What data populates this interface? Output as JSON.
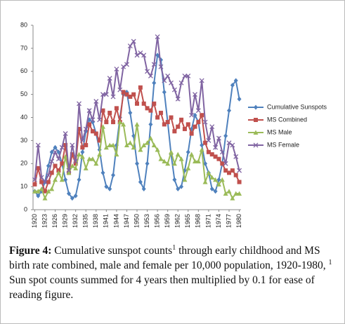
{
  "chart_data": {
    "type": "line",
    "x": [
      1920,
      1921,
      1922,
      1923,
      1924,
      1925,
      1926,
      1927,
      1928,
      1929,
      1930,
      1931,
      1932,
      1933,
      1934,
      1935,
      1936,
      1937,
      1938,
      1939,
      1940,
      1941,
      1942,
      1943,
      1944,
      1945,
      1946,
      1947,
      1948,
      1949,
      1950,
      1951,
      1952,
      1953,
      1954,
      1955,
      1956,
      1957,
      1958,
      1959,
      1960,
      1961,
      1962,
      1963,
      1964,
      1965,
      1966,
      1967,
      1968,
      1969,
      1970,
      1971,
      1972,
      1973,
      1974,
      1975,
      1976,
      1977,
      1978,
      1979,
      1980
    ],
    "xlim": [
      1919.5,
      1980.5
    ],
    "xticks": [
      1920,
      1923,
      1926,
      1929,
      1932,
      1935,
      1938,
      1941,
      1944,
      1947,
      1950,
      1953,
      1956,
      1959,
      1962,
      1965,
      1968,
      1971,
      1974,
      1977,
      1980
    ],
    "ylim": [
      0,
      80
    ],
    "yticks": [
      0,
      10,
      20,
      30,
      40,
      50,
      60,
      70,
      80
    ],
    "grid": false,
    "legend": "right",
    "series": [
      {
        "name": "Cumulative Sunspots",
        "color": "#4f81bd",
        "marker": "diamond",
        "values": [
          8,
          6,
          8,
          12,
          19,
          25,
          27,
          25,
          20,
          13,
          7,
          5,
          6,
          13,
          25,
          34,
          39,
          38,
          33,
          26,
          16,
          10,
          9,
          15,
          28,
          40,
          50,
          51,
          42,
          32,
          20,
          12,
          9,
          20,
          37,
          55,
          67,
          65,
          51,
          38,
          24,
          13,
          9,
          10,
          17,
          25,
          35,
          41,
          38,
          28,
          20,
          16,
          9,
          8,
          13,
          20,
          32,
          43,
          54,
          56,
          48
        ]
      },
      {
        "name": "MS Combined",
        "color": "#c0504d",
        "marker": "square",
        "values": [
          11,
          18,
          12,
          8,
          12,
          16,
          19,
          17,
          20,
          28,
          16,
          24,
          20,
          35,
          27,
          28,
          37,
          34,
          33,
          30,
          43,
          38,
          42,
          38,
          44,
          38,
          51,
          50,
          49,
          50,
          46,
          53,
          46,
          44,
          43,
          46,
          40,
          42,
          37,
          38,
          40,
          34,
          36,
          39,
          35,
          37,
          33,
          36,
          38,
          41,
          29,
          25,
          24,
          23,
          22,
          20,
          17,
          16,
          17,
          15,
          12
        ]
      },
      {
        "name": "MS Male",
        "color": "#9bbb59",
        "marker": "triangle",
        "values": [
          8,
          8,
          9,
          5,
          8,
          9,
          13,
          16,
          13,
          23,
          16,
          19,
          18,
          24,
          23,
          18,
          22,
          22,
          20,
          24,
          36,
          27,
          28,
          28,
          24,
          38,
          37,
          28,
          29,
          27,
          37,
          26,
          28,
          29,
          31,
          28,
          26,
          22,
          21,
          20,
          25,
          20,
          24,
          22,
          13,
          18,
          24,
          21,
          21,
          26,
          12,
          16,
          14,
          13,
          11,
          13,
          7,
          8,
          5,
          7,
          7
        ]
      },
      {
        "name": "MS Female",
        "color": "#8064a2",
        "marker": "x",
        "values": [
          13,
          28,
          14,
          12,
          15,
          21,
          25,
          22,
          27,
          33,
          17,
          28,
          21,
          46,
          30,
          35,
          43,
          39,
          47,
          39,
          50,
          50,
          57,
          49,
          61,
          52,
          62,
          63,
          71,
          73,
          67,
          68,
          67,
          60,
          58,
          63,
          75,
          62,
          56,
          58,
          55,
          52,
          48,
          55,
          58,
          58,
          41,
          50,
          43,
          56,
          38,
          30,
          36,
          27,
          31,
          25,
          20,
          29,
          28,
          23,
          17
        ]
      }
    ]
  },
  "caption": {
    "label": "Figure 4:",
    "text1": " Cumulative sunspot counts",
    "sup1": "1",
    "text2": " through early childhood and MS birth rate combined, male and female per 10,000 population, 1920-1980, ",
    "sup2": "1",
    "text3": " Sun spot counts summed for 4 years then multiplied by 0.1 for ease of reading figure."
  }
}
